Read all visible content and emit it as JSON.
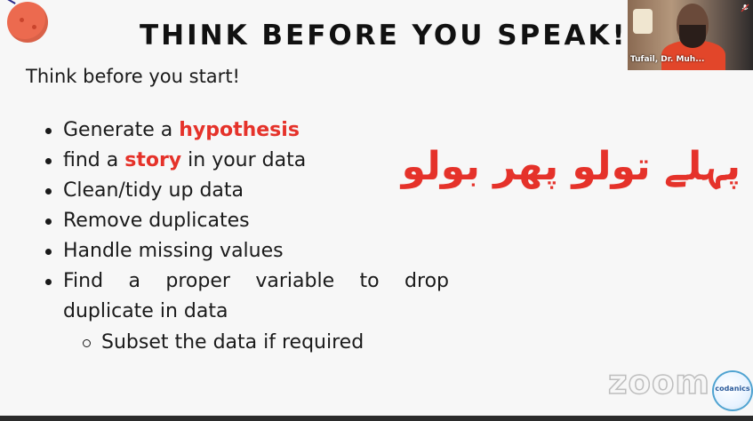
{
  "slide": {
    "title": "THINK BEFORE YOU SPEAK!",
    "subtitle": "Think before you start!",
    "bullets": {
      "b1_prefix": "Generate a ",
      "b1_highlight": "hypothesis",
      "b2_prefix": "find a ",
      "b2_highlight": "story",
      "b2_suffix": " in your data",
      "b3": "Clean/tidy up data",
      "b4": "Remove duplicates",
      "b5": "Handle missing values",
      "b6_line1": "Find a proper variable to drop",
      "b6_line2": "duplicate in data"
    },
    "sub_bullet": "Subset the data if required",
    "urdu_text": "پہلے تولو پھر بولو",
    "highlight_color": "#e5322a"
  },
  "video_tile": {
    "participant_name": "Tufail, Dr. Muh...",
    "mic_icon": "mic-muted-icon"
  },
  "watermark": {
    "zoom": "zoom",
    "badge": "codanics"
  }
}
